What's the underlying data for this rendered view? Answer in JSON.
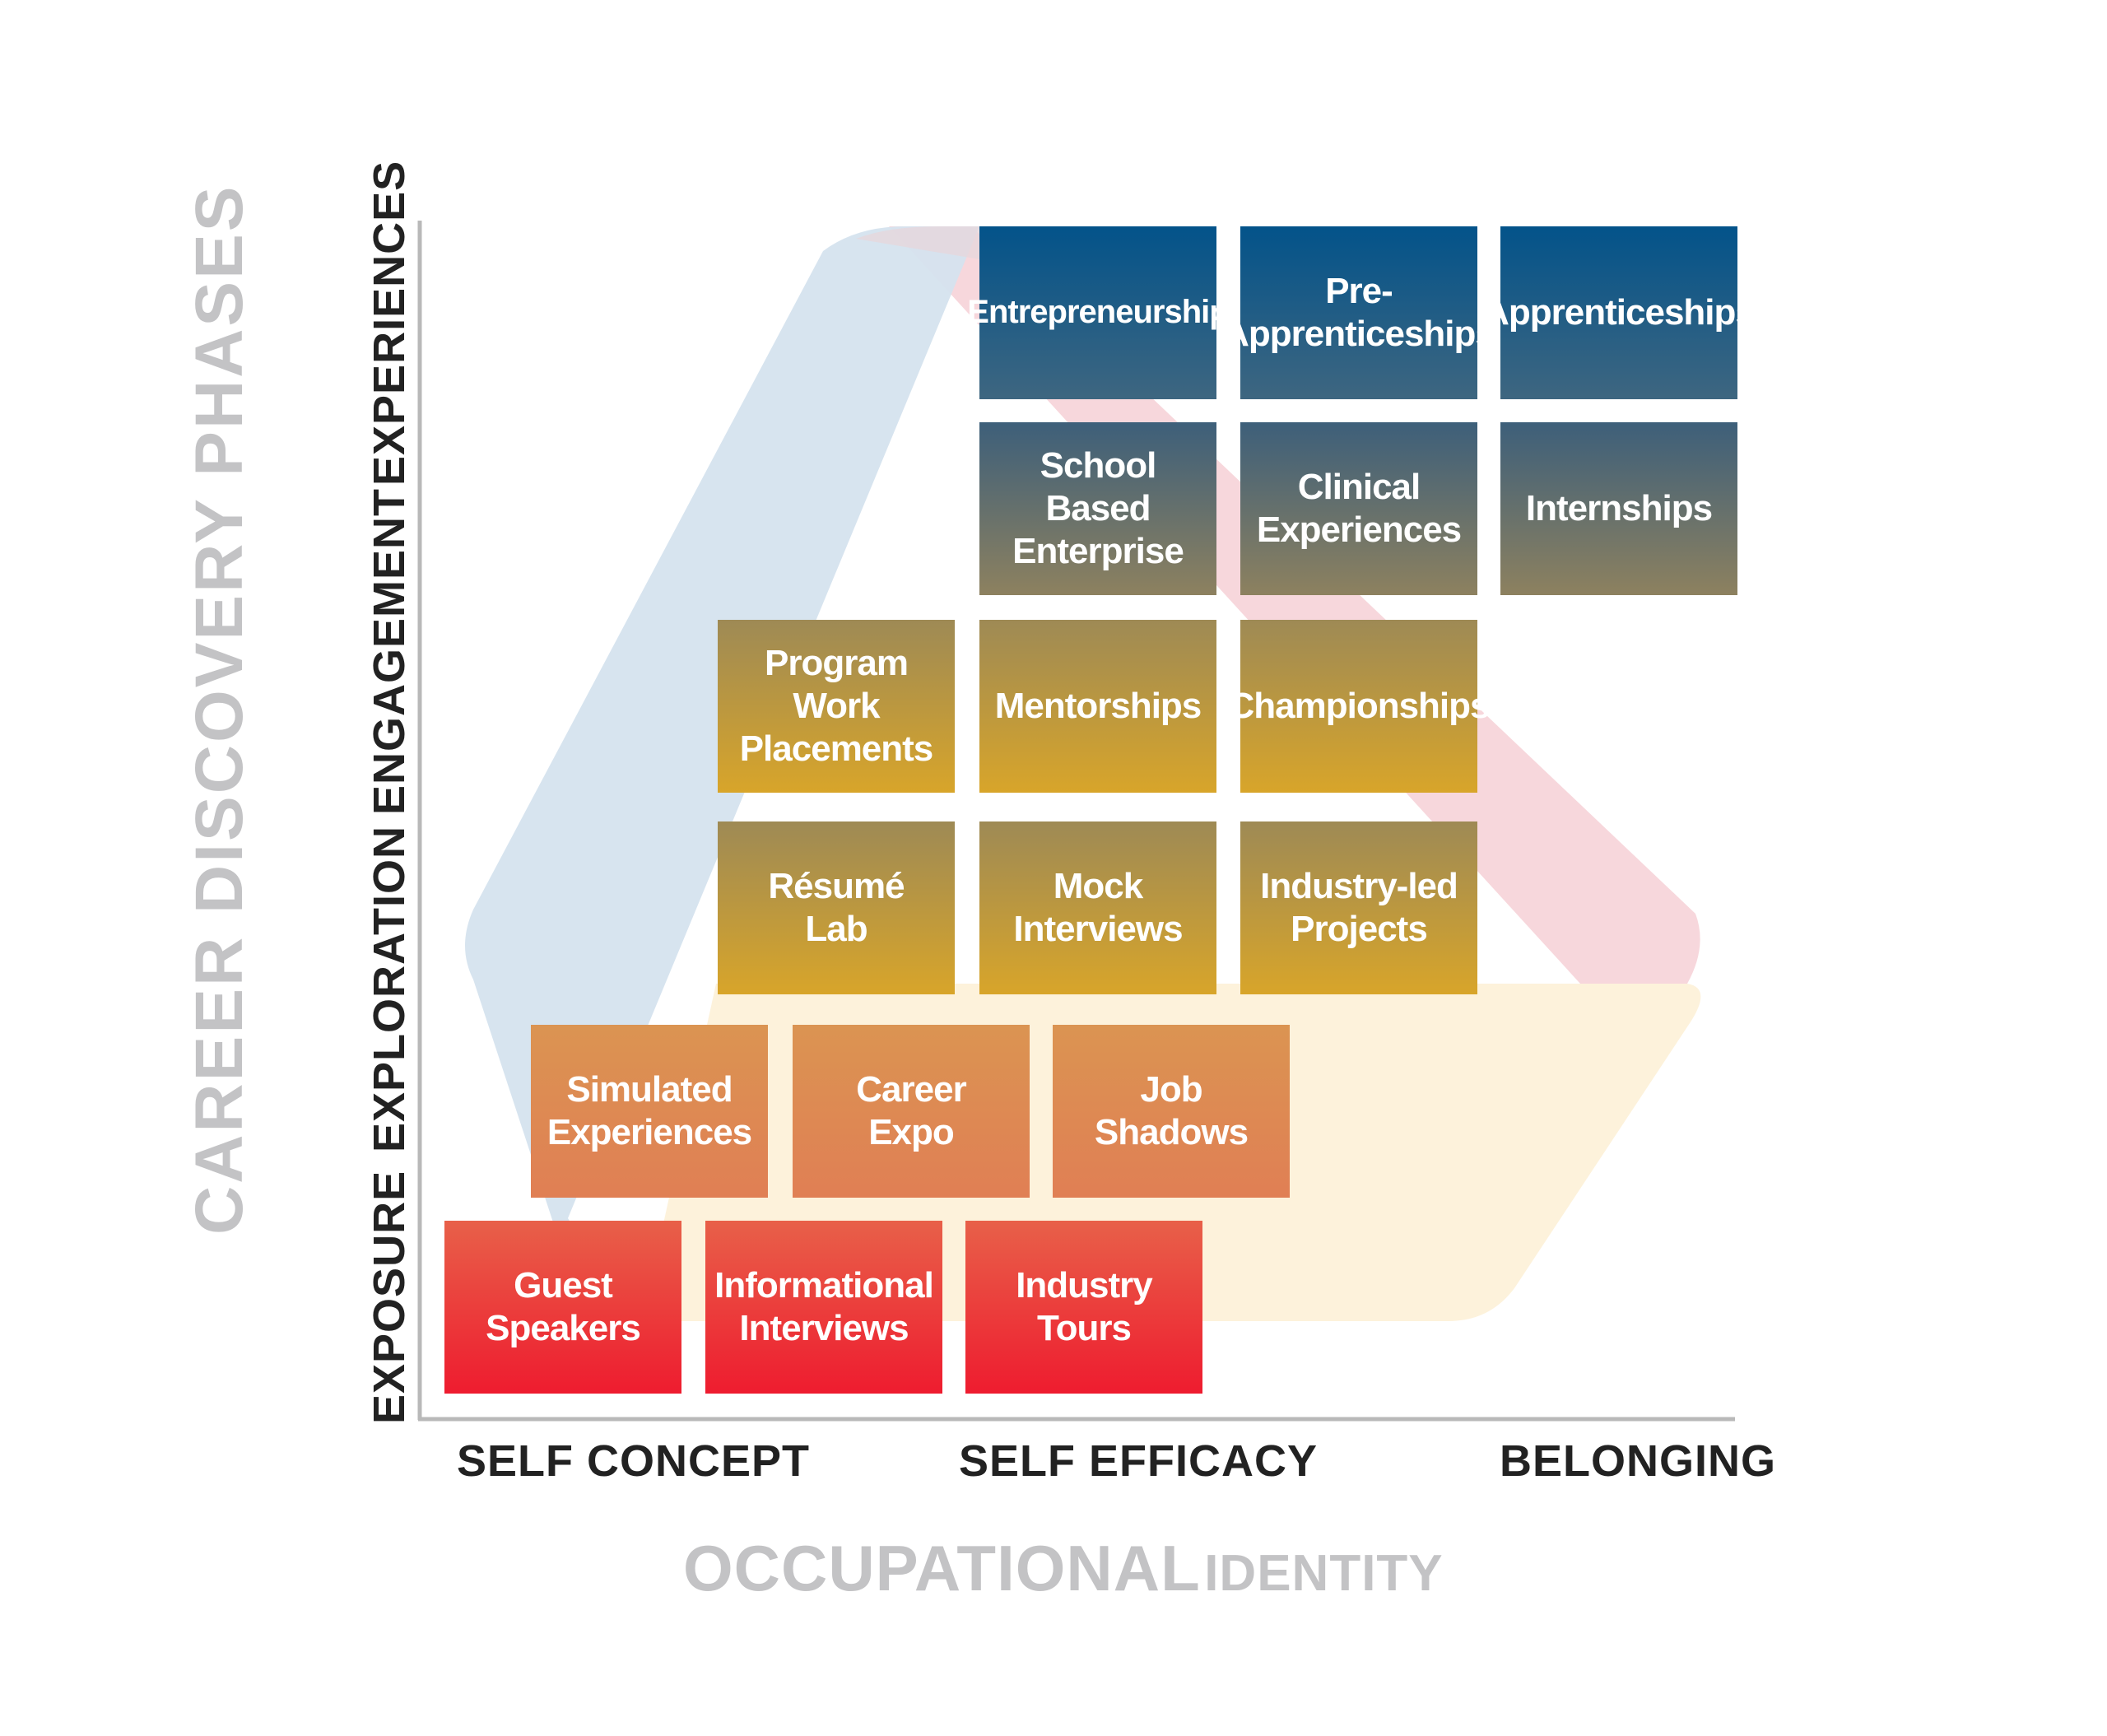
{
  "y_axis_title": "CAREER DISCOVERY PHASES",
  "x_axis_title": {
    "main": "OCCUPATIONAL",
    "suffix": "IDENTITY"
  },
  "phases": [
    "EXPOSURE",
    "EXPLORATION",
    "ENGAGEMENT",
    "EXPERIENCES"
  ],
  "identity_stages": [
    "SELF CONCEPT",
    "SELF EFFICACY",
    "BELONGING"
  ],
  "colors": {
    "exposure_top": "#e86049",
    "exposure_bottom": "#ee1c2f",
    "exploration": "#dd8a53",
    "gold_top": "#9e8a55",
    "gold_bottom": "#d8a52a",
    "slate_top": "#3d5f7a",
    "slate_bottom": "#8d815f",
    "blue_top": "#03538a",
    "blue_bottom": "#3e6680",
    "axis_title_gray": "#c3c3c5",
    "bg_blue": "#d5e3ee",
    "bg_pink": "#f7d5da",
    "bg_cream": "#fdf1d9"
  },
  "activities": {
    "guest_speakers": "Guest\nSpeakers",
    "informational_interviews": "Informational\nInterviews",
    "industry_tours": "Industry\nTours",
    "simulated_experiences": "Simulated\nExperiences",
    "career_expo": "Career\nExpo",
    "job_shadows": "Job\nShadows",
    "resume_lab": "Résumé\nLab",
    "mock_interviews": "Mock\nInterviews",
    "industry_led_projects": "Industry-led\nProjects",
    "program_work_placements": "Program Work\nPlacements",
    "mentorships": "Mentorships",
    "championships": "Championships",
    "school_based_enterprise": "School\nBased\nEnterprise",
    "clinical_experiences": "Clinical\nExperiences",
    "internships": "Internships",
    "entrepreneurship": "Entrepreneurship",
    "pre_apprenticeships": "Pre-\nApprenticeships",
    "apprenticeships": "Apprenticeships"
  }
}
